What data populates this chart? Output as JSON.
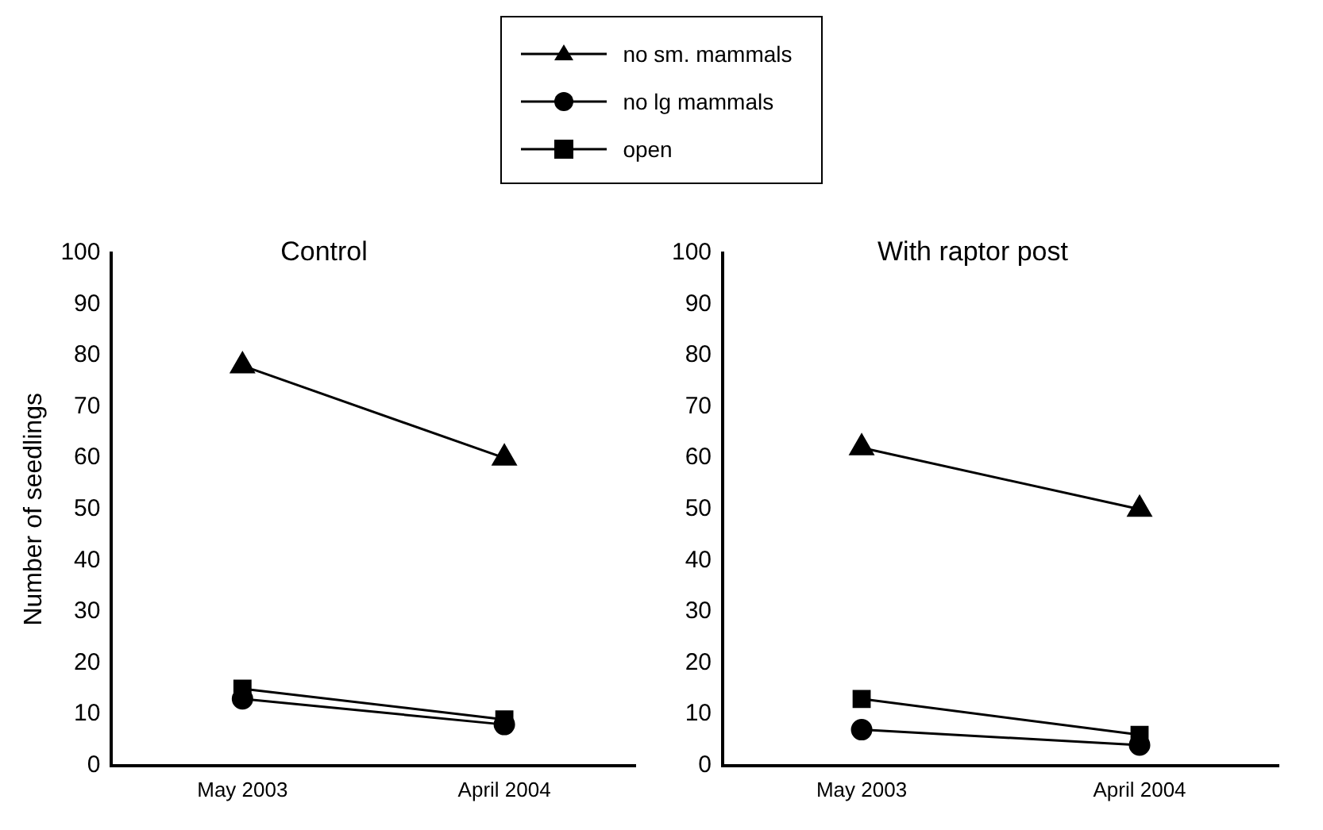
{
  "chart_data": [
    {
      "type": "line",
      "title": "Control",
      "ylabel": "Number of seedlings",
      "categories": [
        "May 2003",
        "April 2004"
      ],
      "ylim": [
        0,
        100
      ],
      "yticks": [
        0,
        10,
        20,
        30,
        40,
        50,
        60,
        70,
        80,
        90,
        100
      ],
      "grid": false,
      "legend": "top",
      "series": [
        {
          "name": "no sm. mammals",
          "color": "#000000",
          "marker": "triangle",
          "values": [
            78,
            60
          ]
        },
        {
          "name": "no lg mammals",
          "color": "#000000",
          "marker": "circle",
          "values": [
            13,
            8
          ]
        },
        {
          "name": "open",
          "color": "#000000",
          "marker": "square",
          "values": [
            15,
            9
          ]
        }
      ]
    },
    {
      "type": "line",
      "title": "With raptor post",
      "categories": [
        "May 2003",
        "April 2004"
      ],
      "ylim": [
        0,
        100
      ],
      "yticks": [
        0,
        10,
        20,
        30,
        40,
        50,
        60,
        70,
        80,
        90,
        100
      ],
      "grid": false,
      "series": [
        {
          "color": "#000000",
          "marker": "triangle",
          "values": [
            62,
            50
          ]
        },
        {
          "color": "#000000",
          "marker": "circle",
          "values": [
            7,
            4
          ]
        },
        {
          "color": "#000000",
          "marker": "square",
          "values": [
            13,
            6
          ]
        }
      ]
    }
  ]
}
